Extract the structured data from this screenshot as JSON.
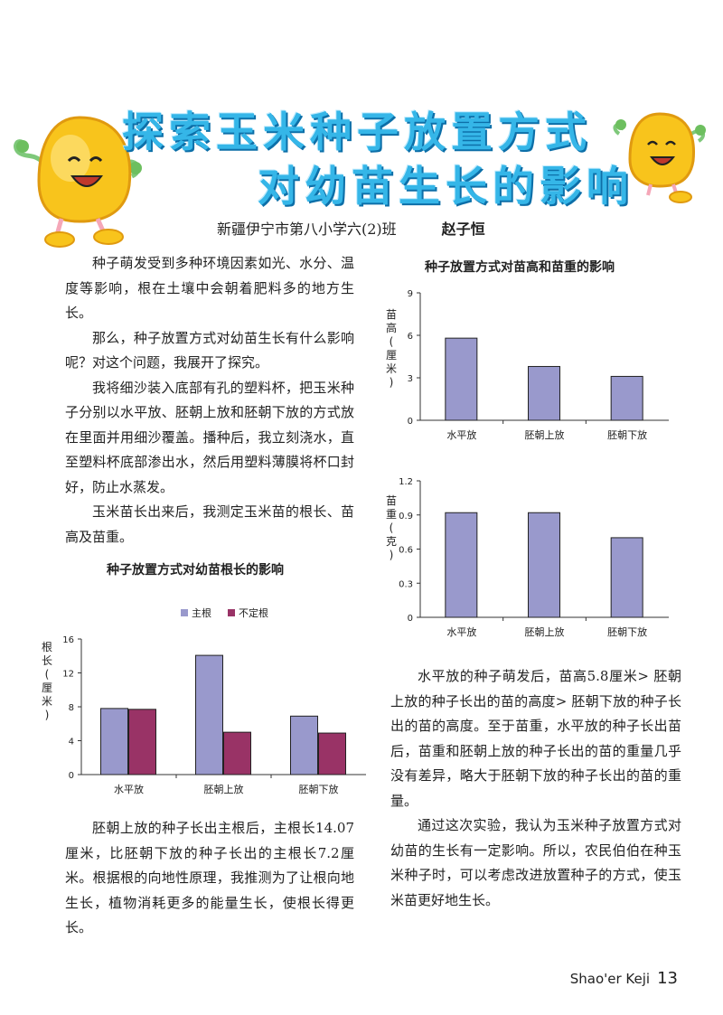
{
  "header": {
    "title_line1": "探索玉米种子放置方式",
    "title_line2": "对幼苗生长的影响",
    "affiliation": "新疆伊宁市第八小学六(2)班",
    "author": "赵子恒"
  },
  "left_column": {
    "paragraphs": [
      "种子萌发受到多种环境因素如光、水分、温度等影响，根在土壤中会朝着肥料多的地方生长。",
      "那么，种子放置方式对幼苗生长有什么影响呢？对这个问题，我展开了探究。",
      "我将细沙装入底部有孔的塑料杯，把玉米种子分别以水平放、胚朝上放和胚朝下放的方式放在里面并用细沙覆盖。播种后，我立刻浇水，直至塑料杯底部渗出水，然后用塑料薄膜将杯口封好，防止水蒸发。",
      "玉米苗长出来后，我测定玉米苗的根长、苗高及苗重。"
    ],
    "paragraphs_after": [
      "胚朝上放的种子长出主根后，主根长14.07厘米，比胚朝下放的种子长出的主根长7.2厘米。根据根的向地性原理，我推测为了让根向地生长，植物消耗更多的能量生长，使根长得更长。"
    ]
  },
  "right_column": {
    "paragraphs": [
      "水平放的种子萌发后，苗高5.8厘米> 胚朝上放的种子长出的苗的高度> 胚朝下放的种子长出的苗的高度。至于苗重，水平放的种子长出苗后，苗重和胚朝上放的种子长出的苗的重量几乎没有差异，略大于胚朝下放的种子长出的苗的重量。",
      "通过这次实验，我认为玉米种子放置方式对幼苗的生长有一定影响。所以，农民伯伯在种玉米种子时，可以考虑改进放置种子的方式，使玉米苗更好地生长。"
    ]
  },
  "chart_data": [
    {
      "type": "bar",
      "title": "种子放置方式对幼苗根长的影响",
      "categories": [
        "水平放",
        "胚朝上放",
        "胚朝下放"
      ],
      "series": [
        {
          "name": "主根",
          "values": [
            7.8,
            14.07,
            6.9
          ],
          "color": "#9999cc"
        },
        {
          "name": "不定根",
          "values": [
            7.7,
            5.0,
            4.9
          ],
          "color": "#993366"
        }
      ],
      "ylabel": "根长(厘米)",
      "ylim": [
        0,
        16
      ],
      "yticks": [
        0,
        4,
        8,
        12,
        16
      ],
      "legend": "top"
    },
    {
      "type": "bar",
      "title": "种子放置方式对苗高和苗重的影响",
      "categories": [
        "水平放",
        "胚朝上放",
        "胚朝下放"
      ],
      "series": [
        {
          "values": [
            5.8,
            3.8,
            3.1
          ],
          "color": "#9999cc"
        }
      ],
      "ylabel": "苗高(厘米)",
      "ylim": [
        0,
        9
      ],
      "yticks": [
        0,
        3,
        6,
        9
      ]
    },
    {
      "type": "bar",
      "title": "",
      "categories": [
        "水平放",
        "胚朝上放",
        "胚朝下放"
      ],
      "series": [
        {
          "values": [
            0.92,
            0.92,
            0.7
          ],
          "color": "#9999cc"
        }
      ],
      "ylabel": "苗重(克)",
      "ylim": [
        0,
        1.2
      ],
      "yticks": [
        "0",
        "0.3",
        "0.6",
        "0.9",
        "1.2"
      ]
    }
  ],
  "footer": {
    "magazine": "Shao'er Keji",
    "page": "13"
  }
}
